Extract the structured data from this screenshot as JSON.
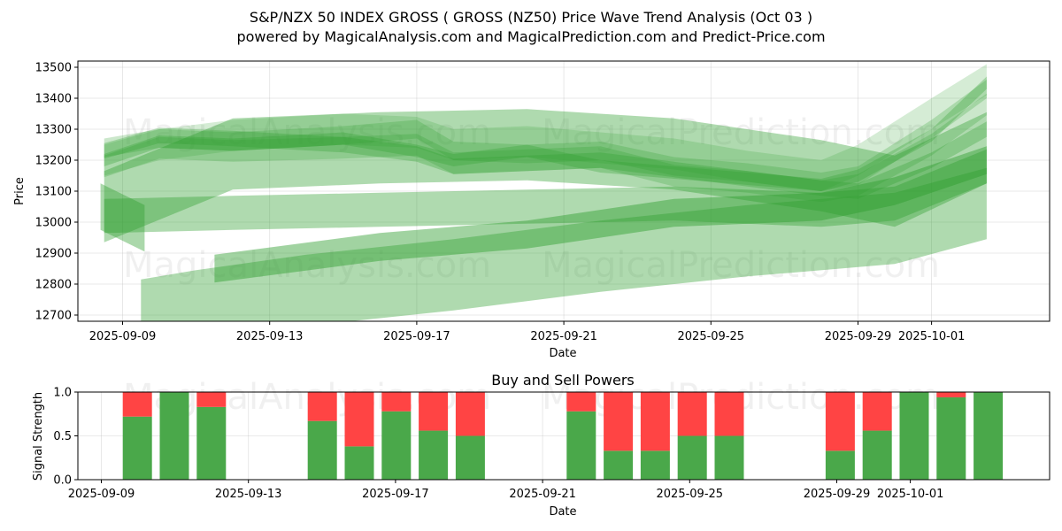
{
  "title_line1": "S&P/NZX 50 INDEX GROSS ( GROSS  (NZ50) Price Wave Trend Analysis (Oct 03 )",
  "title_line2": "powered by MagicalAnalysis.com and MagicalPrediction.com and Predict-Price.com",
  "watermarks": [
    "MagicalAnalysis.com",
    "MagicalPrediction.com"
  ],
  "colors": {
    "band": "#2e9e2e",
    "buy": "#4aa84a",
    "sell": "#ff4444"
  },
  "chart_data": [
    {
      "type": "area",
      "title": "",
      "xlabel": "Date",
      "ylabel": "Price",
      "ylim": [
        12680,
        13520
      ],
      "yticks": [
        12700,
        12800,
        12900,
        13000,
        13100,
        13200,
        13300,
        13400,
        13500
      ],
      "xticks": [
        "2025-09-09",
        "2025-09-13",
        "2025-09-17",
        "2025-09-21",
        "2025-09-25",
        "2025-09-29",
        "2025-10-01"
      ],
      "x_start": "2025-09-08",
      "bands": [
        {
          "x": [
            0.5,
            2,
            4,
            7,
            9,
            10,
            12,
            14,
            16,
            18,
            20,
            21,
            23,
            24.5
          ],
          "center": [
            13200,
            13250,
            13280,
            13300,
            13290,
            13250,
            13260,
            13240,
            13220,
            13180,
            13150,
            13200,
            13350,
            13460
          ],
          "width": 100,
          "alpha": 0.2
        },
        {
          "x": [
            0.5,
            2,
            4,
            7,
            9,
            10,
            12,
            14,
            16,
            18,
            20,
            21,
            23,
            24.5
          ],
          "center": [
            13240,
            13270,
            13260,
            13280,
            13300,
            13230,
            13220,
            13230,
            13180,
            13160,
            13130,
            13150,
            13300,
            13430
          ],
          "width": 60,
          "alpha": 0.25
        },
        {
          "x": [
            0.5,
            2,
            4,
            7,
            9,
            10,
            12,
            14,
            16,
            18,
            20,
            21,
            23,
            24.5
          ],
          "center": [
            13180,
            13240,
            13230,
            13240,
            13250,
            13190,
            13200,
            13210,
            13150,
            13130,
            13100,
            13120,
            13250,
            13380
          ],
          "width": 70,
          "alpha": 0.25
        },
        {
          "x": [
            0.5,
            2,
            4,
            7,
            9,
            10,
            12,
            14,
            16,
            18,
            20,
            21,
            23,
            24.5
          ],
          "center": [
            13200,
            13260,
            13250,
            13270,
            13230,
            13200,
            13230,
            13180,
            13160,
            13140,
            13120,
            13150,
            13280,
            13450
          ],
          "width": 40,
          "alpha": 0.3
        },
        {
          "x": [
            0.5,
            2,
            4,
            7,
            9,
            10,
            12,
            14,
            16,
            18,
            20,
            21,
            23,
            24.5
          ],
          "center": [
            13230,
            13280,
            13270,
            13250,
            13220,
            13180,
            13190,
            13200,
            13170,
            13140,
            13110,
            13100,
            13200,
            13300
          ],
          "width": 50,
          "alpha": 0.3
        },
        {
          "x": [
            0.5,
            4,
            8,
            12,
            16,
            20,
            22,
            24.5
          ],
          "center": [
            13050,
            13220,
            13240,
            13250,
            13220,
            13150,
            13100,
            13240
          ],
          "width": 230,
          "alpha": 0.38
        },
        {
          "x": [
            0.5,
            4,
            8,
            12,
            16,
            20,
            22,
            24.5
          ],
          "center": [
            13020,
            13030,
            13040,
            13050,
            13060,
            13040,
            13060,
            13180
          ],
          "width": 110,
          "alpha": 0.38
        },
        {
          "x": [
            3.5,
            8,
            12,
            16,
            20,
            22,
            24.5
          ],
          "center": [
            12850,
            12920,
            12960,
            13030,
            13050,
            13100,
            13200
          ],
          "width": 90,
          "alpha": 0.45
        },
        {
          "x": [
            1.5,
            3,
            6,
            10,
            14,
            18,
            22,
            24.5
          ],
          "center": [
            12700,
            12730,
            12780,
            12830,
            12890,
            12940,
            12980,
            13060
          ],
          "width": 230,
          "alpha": 0.38
        },
        {
          "x": [
            0.4,
            1.6
          ],
          "center": [
            13050,
            12980
          ],
          "width": 150,
          "alpha": 0.4
        }
      ]
    },
    {
      "type": "bar",
      "title": "Buy and Sell Powers",
      "xlabel": "Date",
      "ylabel": "Signal Strength",
      "ylim": [
        0,
        1
      ],
      "yticks": [
        0.0,
        0.5,
        1.0
      ],
      "ytick_labels": [
        "0.0",
        "0.5",
        "1.0"
      ],
      "xticks": [
        "2025-09-09",
        "2025-09-13",
        "2025-09-17",
        "2025-09-21",
        "2025-09-25",
        "2025-09-29",
        "2025-10-01"
      ],
      "series": [
        {
          "name": "Buy",
          "x": [
            2,
            3,
            4,
            7,
            8,
            9,
            10,
            11,
            14,
            15,
            16,
            17,
            18,
            21,
            22,
            23,
            24,
            25
          ],
          "values": [
            0.72,
            1.0,
            0.83,
            0.67,
            0.38,
            0.78,
            0.56,
            0.5,
            0.78,
            0.33,
            0.33,
            0.5,
            0.5,
            0.33,
            0.56,
            1.0,
            0.94,
            1.0
          ]
        },
        {
          "name": "Sell",
          "x": [
            2,
            3,
            4,
            7,
            8,
            9,
            10,
            11,
            14,
            15,
            16,
            17,
            18,
            21,
            22,
            23,
            24,
            25
          ],
          "values": [
            0.28,
            0.0,
            0.17,
            0.33,
            0.62,
            0.22,
            0.44,
            0.5,
            0.22,
            0.67,
            0.67,
            0.5,
            0.5,
            0.67,
            0.44,
            0.0,
            0.06,
            0.0
          ]
        }
      ]
    }
  ]
}
